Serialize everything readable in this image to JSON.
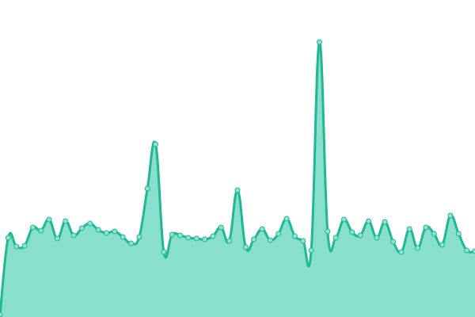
{
  "chart_data": {
    "type": "area",
    "values": [
      3,
      100,
      89,
      90,
      113,
      109,
      123,
      99,
      121,
      103,
      112,
      118,
      110,
      106,
      108,
      101,
      93,
      101,
      162,
      218,
      82,
      104,
      103,
      100,
      99,
      98,
      102,
      113,
      96,
      160,
      88,
      98,
      111,
      97,
      105,
      124,
      102,
      96,
      84,
      347,
      108,
      100,
      123,
      107,
      103,
      121,
      100,
      120,
      95,
      82,
      111,
      87,
      113,
      105,
      91,
      128,
      105,
      84,
      83
    ],
    "ylim": [
      0,
      400
    ],
    "line_color": "#1fb893",
    "fill_color": "#88e0cc",
    "marker_color": "#8fe3d0"
  }
}
